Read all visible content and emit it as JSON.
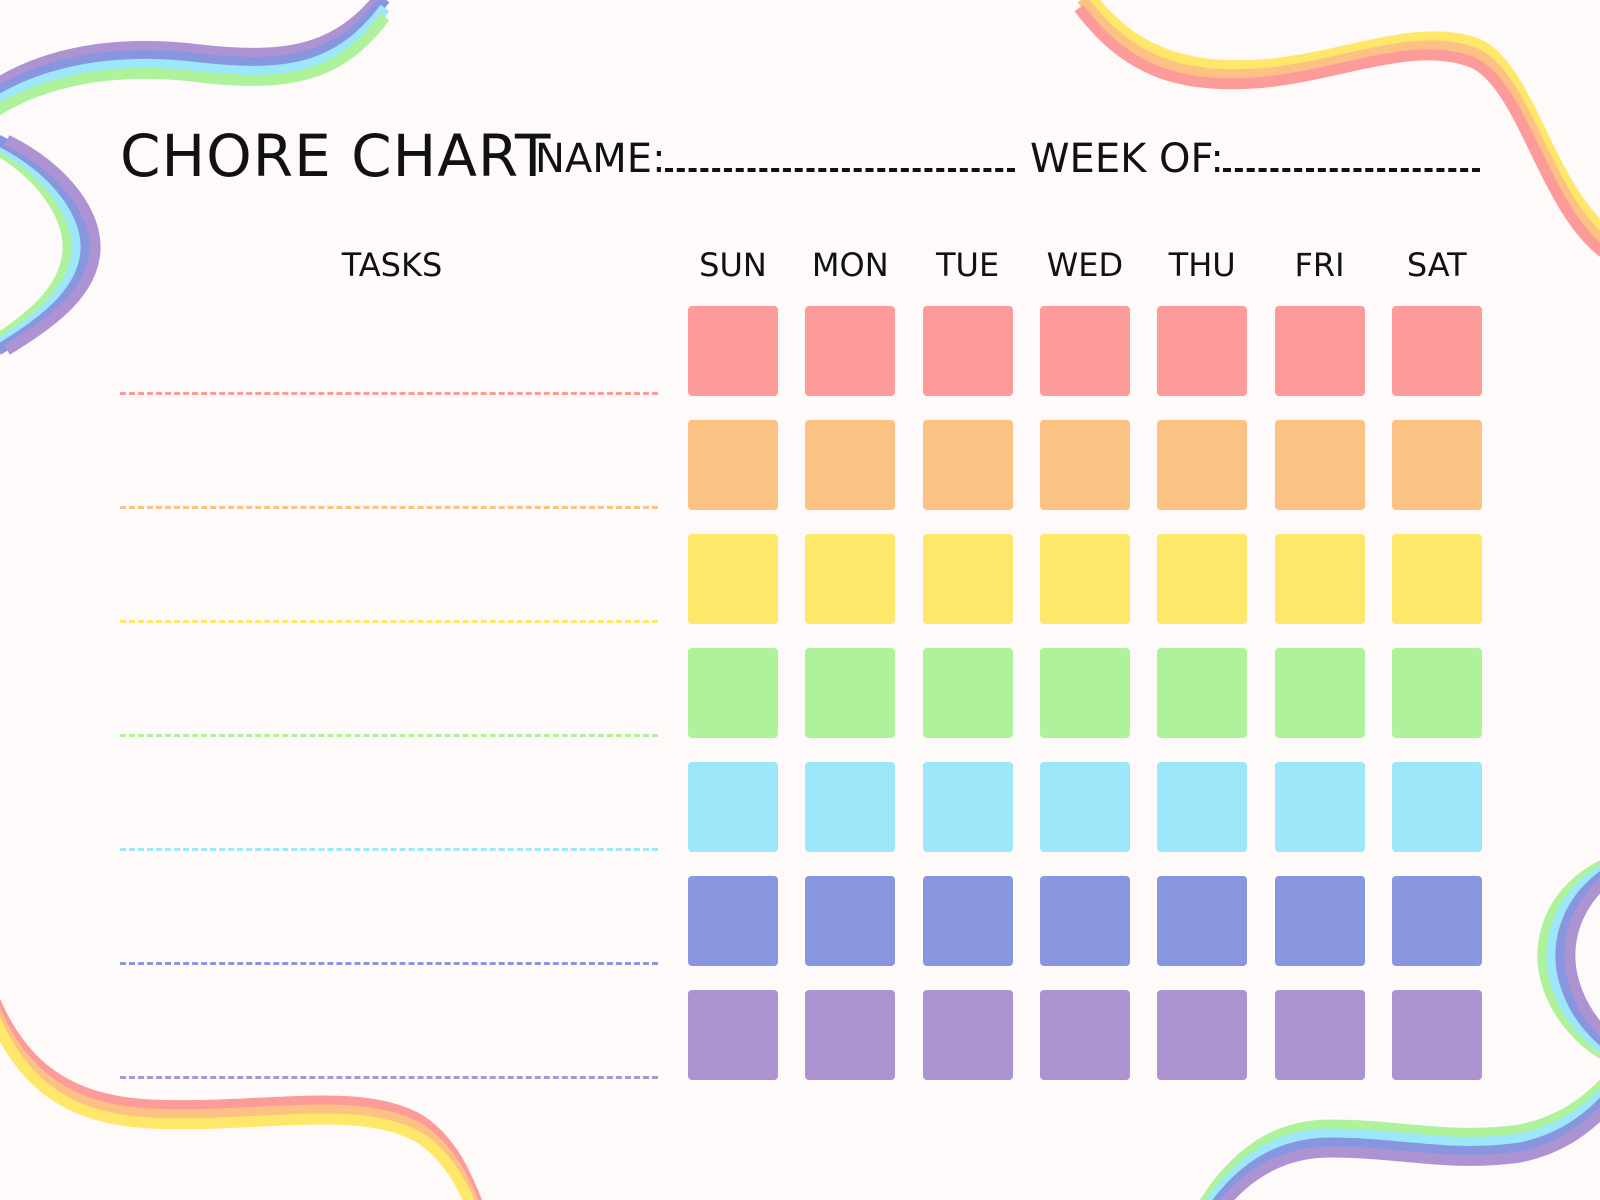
{
  "header": {
    "title": "CHORE CHART",
    "name_label": "NAME:",
    "week_label": "WEEK OF:"
  },
  "tasks_header": "TASKS",
  "days": [
    "SUN",
    "MON",
    "TUE",
    "WED",
    "THU",
    "FRI",
    "SAT"
  ],
  "row_colors": [
    "#fd9a9a",
    "#fbc283",
    "#ffe76a",
    "#aef29c",
    "#9de7fb",
    "#8796de",
    "#ae93d3"
  ],
  "background": "#fffafa"
}
